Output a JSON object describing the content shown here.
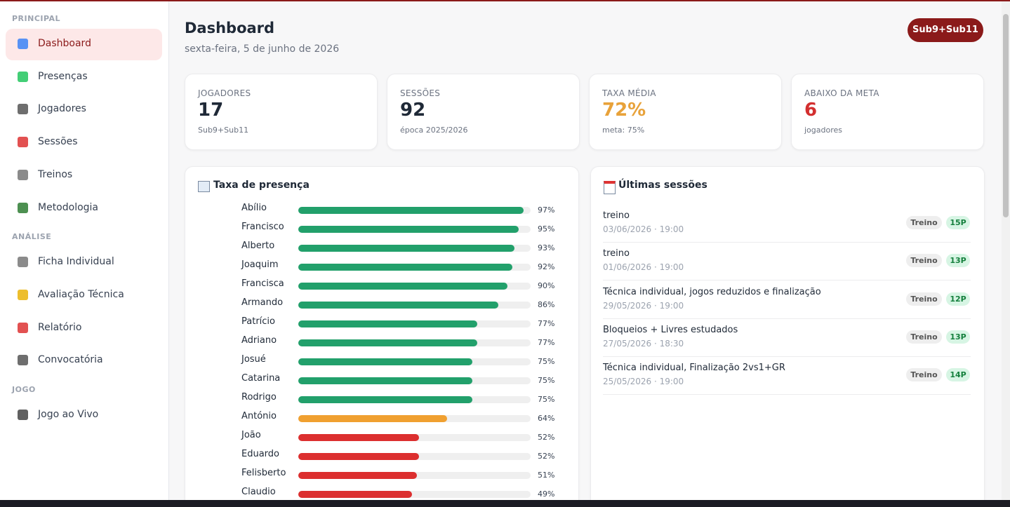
{
  "sidebar": {
    "sections": [
      {
        "title": "PRINCIPAL",
        "items": [
          "Dashboard",
          "Presenças",
          "Jogadores",
          "Sessões",
          "Treinos",
          "Metodologia"
        ]
      },
      {
        "title": "ANÁLISE",
        "items": [
          "Ficha Individual",
          "Avaliação Técnica",
          "Relatório",
          "Convocatória"
        ]
      },
      {
        "title": "JOGO",
        "items": [
          "Jogo ao Vivo"
        ]
      }
    ]
  },
  "header": {
    "title": "Dashboard",
    "date": "sexta-feira, 5 de junho de 2026",
    "team_button": "Sub9+Sub11"
  },
  "stats": [
    {
      "label": "JOGADORES",
      "value": "17",
      "sub": "Sub9+Sub11",
      "color": "#1f2937"
    },
    {
      "label": "SESSÕES",
      "value": "92",
      "sub": "época 2025/2026",
      "color": "#1f2937"
    },
    {
      "label": "TAXA MÉDIA",
      "value": "72%",
      "sub": "meta: 75%",
      "color": "#e8a23a"
    },
    {
      "label": "ABAIXO DA META",
      "value": "6",
      "sub": "jogadores",
      "color": "#d32f2f"
    }
  ],
  "attendance": {
    "title": "Taxa de presença",
    "players": [
      "Abílio",
      "Francisco",
      "Alberto",
      "Joaquim",
      "Francisca",
      "Armando",
      "Patrício",
      "Adriano",
      "Josué",
      "Catarina",
      "Rodrigo",
      "António",
      "João",
      "Eduardo",
      "Felisberto",
      "Claudio"
    ],
    "values": [
      97,
      95,
      93,
      92,
      90,
      86,
      77,
      77,
      75,
      75,
      75,
      64,
      52,
      52,
      51,
      49
    ],
    "value_labels": [
      "97%",
      "95%",
      "93%",
      "92%",
      "90%",
      "86%",
      "77%",
      "77%",
      "75%",
      "75%",
      "75%",
      "64%",
      "52%",
      "52%",
      "51%",
      "49%"
    ],
    "colors": [
      "#22a06b",
      "#22a06b",
      "#22a06b",
      "#22a06b",
      "#22a06b",
      "#22a06b",
      "#22a06b",
      "#22a06b",
      "#22a06b",
      "#22a06b",
      "#22a06b",
      "#f0a030",
      "#dc2f2f",
      "#dc2f2f",
      "#dc2f2f",
      "#dc2f2f"
    ]
  },
  "sessions": {
    "title": "Últimas sessões",
    "items": [
      {
        "title": "treino",
        "date": "03/06/2026 · 19:00",
        "type": "Treino",
        "count": "15P"
      },
      {
        "title": "treino",
        "date": "01/06/2026 · 19:00",
        "type": "Treino",
        "count": "13P"
      },
      {
        "title": "Técnica individual, jogos reduzidos e finalização",
        "date": "29/05/2026 · 19:00",
        "type": "Treino",
        "count": "12P"
      },
      {
        "title": "Bloqueios + Livres estudados",
        "date": "27/05/2026 · 18:30",
        "type": "Treino",
        "count": "13P"
      },
      {
        "title": "Técnica individual, Finalização 2vs1+GR",
        "date": "25/05/2026 · 19:00",
        "type": "Treino",
        "count": "14P"
      }
    ]
  }
}
